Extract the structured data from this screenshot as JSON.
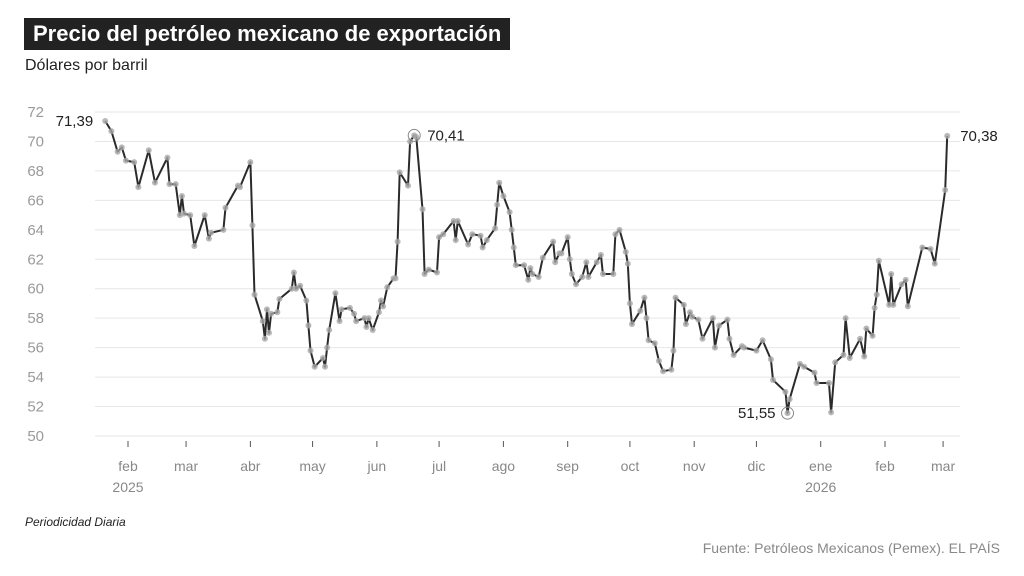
{
  "title": "Precio del petróleo mexicano de exportación",
  "subtitle": "Dólares por barril",
  "note": "Periodicidad Diaria",
  "source": "Fuente: Petróleos Mexicanos (Pemex). EL PAÍS",
  "colors": {
    "line": "#2b2b2b",
    "marker": "#a8a8a8",
    "grid": "#e6e6e6",
    "title_bg": "#222222"
  },
  "chart_data": {
    "type": "line",
    "title": "Precio del petróleo mexicano de exportación",
    "ylabel": "Dólares por barril",
    "ylim": [
      50,
      72
    ],
    "yticks": [
      50,
      52,
      54,
      56,
      58,
      60,
      62,
      64,
      66,
      68,
      70,
      72
    ],
    "grid": true,
    "xticks": [
      {
        "date": "2025-02-01",
        "label": "feb",
        "year": "2025"
      },
      {
        "date": "2025-03-01",
        "label": "mar"
      },
      {
        "date": "2025-04-01",
        "label": "abr"
      },
      {
        "date": "2025-05-01",
        "label": "may"
      },
      {
        "date": "2025-06-01",
        "label": "jun"
      },
      {
        "date": "2025-07-01",
        "label": "jul"
      },
      {
        "date": "2025-08-01",
        "label": "ago"
      },
      {
        "date": "2025-09-01",
        "label": "sep"
      },
      {
        "date": "2025-10-01",
        "label": "oct"
      },
      {
        "date": "2025-11-01",
        "label": "nov"
      },
      {
        "date": "2025-12-01",
        "label": "dic"
      },
      {
        "date": "2026-01-01",
        "label": "ene",
        "year": "2026"
      },
      {
        "date": "2026-02-01",
        "label": "feb"
      },
      {
        "date": "2026-03-01",
        "label": "mar"
      }
    ],
    "annotations": [
      {
        "date": "2025-01-21",
        "value": 71.39,
        "label": "71,39",
        "side": "left",
        "ring": false
      },
      {
        "date": "2025-06-19",
        "value": 70.41,
        "label": "70,41",
        "side": "right",
        "ring": true
      },
      {
        "date": "2025-12-16",
        "value": 51.55,
        "label": "51,55",
        "side": "left",
        "ring": true
      },
      {
        "date": "2026-03-03",
        "value": 70.38,
        "label": "70,38",
        "side": "right",
        "ring": false
      }
    ],
    "series": [
      {
        "points": [
          [
            "2025-01-21",
            71.39
          ],
          [
            "2025-01-24",
            70.7
          ],
          [
            "2025-01-27",
            69.3
          ],
          [
            "2025-01-29",
            69.6
          ],
          [
            "2025-01-31",
            68.7
          ],
          [
            "2025-02-04",
            68.6
          ],
          [
            "2025-02-06",
            66.9
          ],
          [
            "2025-02-11",
            69.4
          ],
          [
            "2025-02-14",
            67.2
          ],
          [
            "2025-02-20",
            68.9
          ],
          [
            "2025-02-21",
            67.1
          ],
          [
            "2025-02-24",
            67.1
          ],
          [
            "2025-02-26",
            65.0
          ],
          [
            "2025-02-27",
            66.3
          ],
          [
            "2025-02-28",
            65.1
          ],
          [
            "2025-03-03",
            65.0
          ],
          [
            "2025-03-05",
            62.9
          ],
          [
            "2025-03-10",
            65.0
          ],
          [
            "2025-03-12",
            63.4
          ],
          [
            "2025-03-13",
            63.8
          ],
          [
            "2025-03-19",
            64.0
          ],
          [
            "2025-03-20",
            65.5
          ],
          [
            "2025-03-26",
            67.0
          ],
          [
            "2025-03-27",
            66.9
          ],
          [
            "2025-04-01",
            68.6
          ],
          [
            "2025-04-02",
            64.3
          ],
          [
            "2025-04-03",
            59.6
          ],
          [
            "2025-04-07",
            57.8
          ],
          [
            "2025-04-08",
            56.6
          ],
          [
            "2025-04-09",
            58.6
          ],
          [
            "2025-04-10",
            57.0
          ],
          [
            "2025-04-11",
            58.3
          ],
          [
            "2025-04-14",
            58.4
          ],
          [
            "2025-04-15",
            59.3
          ],
          [
            "2025-04-21",
            60.0
          ],
          [
            "2025-04-22",
            61.1
          ],
          [
            "2025-04-23",
            60.0
          ],
          [
            "2025-04-25",
            60.2
          ],
          [
            "2025-04-28",
            59.2
          ],
          [
            "2025-04-29",
            57.5
          ],
          [
            "2025-04-30",
            55.8
          ],
          [
            "2025-05-02",
            54.7
          ],
          [
            "2025-05-06",
            55.3
          ],
          [
            "2025-05-07",
            54.7
          ],
          [
            "2025-05-08",
            56.0
          ],
          [
            "2025-05-09",
            57.2
          ],
          [
            "2025-05-12",
            59.7
          ],
          [
            "2025-05-14",
            57.8
          ],
          [
            "2025-05-15",
            58.6
          ],
          [
            "2025-05-19",
            58.7
          ],
          [
            "2025-05-21",
            58.3
          ],
          [
            "2025-05-22",
            57.8
          ],
          [
            "2025-05-26",
            58.0
          ],
          [
            "2025-05-27",
            57.4
          ],
          [
            "2025-05-28",
            58.0
          ],
          [
            "2025-05-30",
            57.2
          ],
          [
            "2025-06-02",
            58.4
          ],
          [
            "2025-06-03",
            59.2
          ],
          [
            "2025-06-04",
            58.8
          ],
          [
            "2025-06-06",
            60.1
          ],
          [
            "2025-06-09",
            60.7
          ],
          [
            "2025-06-10",
            60.7
          ],
          [
            "2025-06-11",
            63.2
          ],
          [
            "2025-06-12",
            67.9
          ],
          [
            "2025-06-16",
            67.0
          ],
          [
            "2025-06-17",
            70.0
          ],
          [
            "2025-06-19",
            70.41
          ],
          [
            "2025-06-20",
            70.3
          ],
          [
            "2025-06-23",
            65.4
          ],
          [
            "2025-06-24",
            61.0
          ],
          [
            "2025-06-26",
            61.3
          ],
          [
            "2025-06-30",
            61.1
          ],
          [
            "2025-07-01",
            63.5
          ],
          [
            "2025-07-03",
            63.7
          ],
          [
            "2025-07-08",
            64.6
          ],
          [
            "2025-07-09",
            63.3
          ],
          [
            "2025-07-10",
            64.6
          ],
          [
            "2025-07-15",
            63.0
          ],
          [
            "2025-07-17",
            63.7
          ],
          [
            "2025-07-21",
            63.6
          ],
          [
            "2025-07-22",
            62.8
          ],
          [
            "2025-07-24",
            63.3
          ],
          [
            "2025-07-28",
            64.1
          ],
          [
            "2025-07-29",
            65.7
          ],
          [
            "2025-07-30",
            67.2
          ],
          [
            "2025-08-01",
            66.3
          ],
          [
            "2025-08-04",
            65.2
          ],
          [
            "2025-08-05",
            64.0
          ],
          [
            "2025-08-06",
            62.8
          ],
          [
            "2025-08-07",
            61.6
          ],
          [
            "2025-08-11",
            61.6
          ],
          [
            "2025-08-13",
            60.6
          ],
          [
            "2025-08-14",
            61.4
          ],
          [
            "2025-08-15",
            61.0
          ],
          [
            "2025-08-18",
            60.8
          ],
          [
            "2025-08-20",
            62.1
          ],
          [
            "2025-08-25",
            63.2
          ],
          [
            "2025-08-26",
            61.8
          ],
          [
            "2025-08-28",
            62.4
          ],
          [
            "2025-08-29",
            62.4
          ],
          [
            "2025-09-01",
            63.5
          ],
          [
            "2025-09-02",
            62.0
          ],
          [
            "2025-09-03",
            61.0
          ],
          [
            "2025-09-05",
            60.3
          ],
          [
            "2025-09-08",
            60.8
          ],
          [
            "2025-09-10",
            61.8
          ],
          [
            "2025-09-11",
            60.8
          ],
          [
            "2025-09-15",
            61.8
          ],
          [
            "2025-09-17",
            62.3
          ],
          [
            "2025-09-18",
            61.0
          ],
          [
            "2025-09-23",
            61.0
          ],
          [
            "2025-09-24",
            63.7
          ],
          [
            "2025-09-26",
            64.0
          ],
          [
            "2025-09-29",
            62.5
          ],
          [
            "2025-09-30",
            61.7
          ],
          [
            "2025-10-01",
            59.0
          ],
          [
            "2025-10-02",
            57.6
          ],
          [
            "2025-10-06",
            58.5
          ],
          [
            "2025-10-08",
            59.4
          ],
          [
            "2025-10-09",
            58.0
          ],
          [
            "2025-10-10",
            56.5
          ],
          [
            "2025-10-13",
            56.3
          ],
          [
            "2025-10-15",
            55.1
          ],
          [
            "2025-10-17",
            54.4
          ],
          [
            "2025-10-21",
            54.5
          ],
          [
            "2025-10-22",
            55.8
          ],
          [
            "2025-10-23",
            59.4
          ],
          [
            "2025-10-27",
            58.9
          ],
          [
            "2025-10-28",
            57.6
          ],
          [
            "2025-10-30",
            58.4
          ],
          [
            "2025-10-31",
            58.1
          ],
          [
            "2025-11-03",
            57.9
          ],
          [
            "2025-11-05",
            56.6
          ],
          [
            "2025-11-10",
            58.0
          ],
          [
            "2025-11-11",
            56.0
          ],
          [
            "2025-11-13",
            57.5
          ],
          [
            "2025-11-17",
            57.9
          ],
          [
            "2025-11-18",
            56.6
          ],
          [
            "2025-11-20",
            55.5
          ],
          [
            "2025-11-24",
            56.1
          ],
          [
            "2025-11-25",
            56.0
          ],
          [
            "2025-12-01",
            55.8
          ],
          [
            "2025-12-04",
            56.5
          ],
          [
            "2025-12-08",
            55.2
          ],
          [
            "2025-12-09",
            53.8
          ],
          [
            "2025-12-15",
            53.0
          ],
          [
            "2025-12-16",
            51.55
          ],
          [
            "2025-12-17",
            52.5
          ],
          [
            "2025-12-22",
            54.9
          ],
          [
            "2025-12-24",
            54.7
          ],
          [
            "2025-12-29",
            54.3
          ],
          [
            "2025-12-30",
            53.6
          ],
          [
            "2026-01-05",
            53.6
          ],
          [
            "2026-01-06",
            51.6
          ],
          [
            "2026-01-08",
            55.0
          ],
          [
            "2026-01-12",
            55.5
          ],
          [
            "2026-01-13",
            58.0
          ],
          [
            "2026-01-15",
            55.3
          ],
          [
            "2026-01-20",
            56.6
          ],
          [
            "2026-01-22",
            55.4
          ],
          [
            "2026-01-23",
            57.3
          ],
          [
            "2026-01-26",
            56.8
          ],
          [
            "2026-01-27",
            58.7
          ],
          [
            "2026-01-28",
            59.6
          ],
          [
            "2026-01-29",
            61.9
          ],
          [
            "2026-02-03",
            58.9
          ],
          [
            "2026-02-04",
            61.0
          ],
          [
            "2026-02-05",
            58.9
          ],
          [
            "2026-02-09",
            60.3
          ],
          [
            "2026-02-11",
            60.6
          ],
          [
            "2026-02-12",
            58.8
          ],
          [
            "2026-02-19",
            62.8
          ],
          [
            "2026-02-23",
            62.7
          ],
          [
            "2026-02-25",
            61.7
          ],
          [
            "2026-03-02",
            66.7
          ],
          [
            "2026-03-03",
            70.38
          ]
        ]
      }
    ]
  }
}
